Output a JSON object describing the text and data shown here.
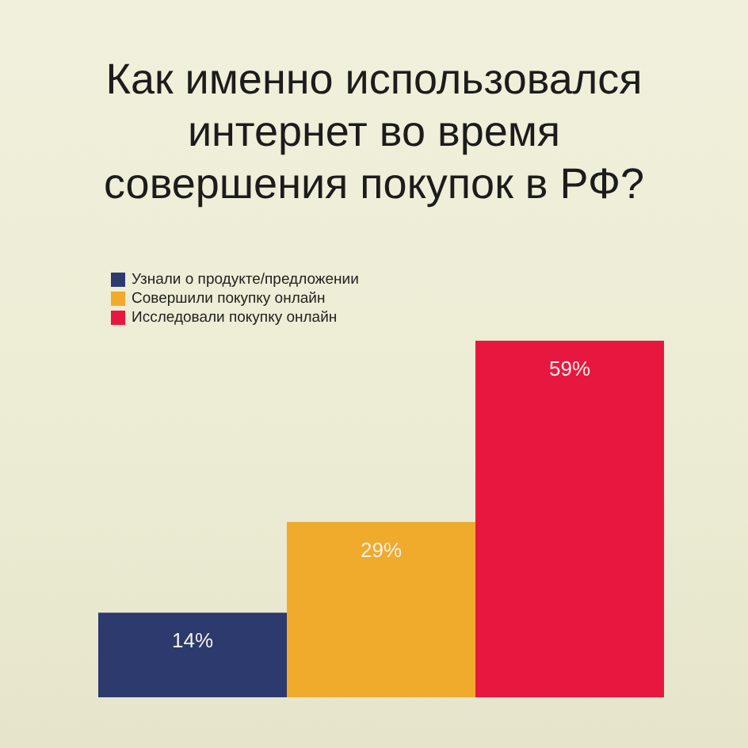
{
  "chart_data": {
    "type": "bar",
    "title": "Как именно использовался интернет во время совершения покупок в РФ?",
    "categories": [
      null
    ],
    "series": [
      {
        "name": "Узнали о продукте/предложении",
        "color": "#2c3a6e",
        "values": [
          14
        ],
        "value_labels": [
          "14%"
        ]
      },
      {
        "name": "Совершили покупку онлайн",
        "color": "#f0aa2c",
        "values": [
          29
        ],
        "value_labels": [
          "29%"
        ]
      },
      {
        "name": "Исследовали покупку онлайн",
        "color": "#e8173f",
        "values": [
          59
        ],
        "value_labels": [
          "59%"
        ]
      }
    ],
    "legend": "top left",
    "tick_labels": false
  }
}
